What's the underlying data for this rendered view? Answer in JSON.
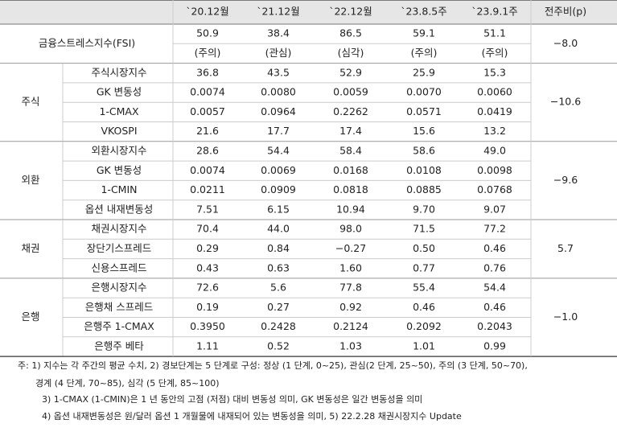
{
  "header": {
    "columns": [
      "`20.12월",
      "`21.12월",
      "`22.12월",
      "`23.8.5주",
      "`23.9.1주",
      "전주비(p)"
    ]
  },
  "negative_color": "#e0301e",
  "fsi": {
    "label": "금융스트레스지수(FSI)",
    "values": [
      "50.9",
      "38.4",
      "86.5",
      "59.1",
      "51.1"
    ],
    "levels": [
      "(주의)",
      "(관심)",
      "(심각)",
      "(주의)",
      "(주의)"
    ],
    "change": "−8.0"
  },
  "sections": [
    {
      "name": "주식",
      "change": "−10.6",
      "rows": [
        {
          "label": "주식시장지수",
          "values": [
            "36.8",
            "43.5",
            "52.9",
            "25.9",
            "15.3"
          ]
        },
        {
          "label": "GK 변동성",
          "values": [
            "0.0074",
            "0.0080",
            "0.0059",
            "0.0070",
            "0.0060"
          ]
        },
        {
          "label": "1-CMAX",
          "values": [
            "0.0057",
            "0.0964",
            "0.2262",
            "0.0571",
            "0.0419"
          ]
        },
        {
          "label": "VKOSPI",
          "values": [
            "21.6",
            "17.7",
            "17.4",
            "15.6",
            "13.2"
          ]
        }
      ]
    },
    {
      "name": "외환",
      "change": "−9.6",
      "rows": [
        {
          "label": "외환시장지수",
          "values": [
            "28.6",
            "54.4",
            "58.4",
            "58.6",
            "49.0"
          ]
        },
        {
          "label": "GK 변동성",
          "values": [
            "0.0074",
            "0.0069",
            "0.0168",
            "0.0108",
            "0.0098"
          ]
        },
        {
          "label": "1-CMIN",
          "values": [
            "0.0211",
            "0.0909",
            "0.0818",
            "0.0885",
            "0.0768"
          ]
        },
        {
          "label": "옵션 내재변동성",
          "values": [
            "7.51",
            "6.15",
            "10.94",
            "9.70",
            "9.07"
          ]
        }
      ]
    },
    {
      "name": "채권",
      "change": "5.7",
      "rows": [
        {
          "label": "채권시장지수",
          "values": [
            "70.4",
            "44.0",
            "98.0",
            "71.5",
            "77.2"
          ]
        },
        {
          "label": "장단기스프레드",
          "values": [
            "0.29",
            "0.84",
            "−0.27",
            "0.50",
            "0.46"
          ]
        },
        {
          "label": "신용스프레드",
          "values": [
            "0.43",
            "0.63",
            "1.60",
            "0.77",
            "0.76"
          ]
        }
      ]
    },
    {
      "name": "은행",
      "change": "−1.0",
      "rows": [
        {
          "label": "은행시장지수",
          "values": [
            "72.6",
            "5.6",
            "77.8",
            "55.4",
            "54.4"
          ]
        },
        {
          "label": "은행채 스프레드",
          "values": [
            "0.19",
            "0.27",
            "0.92",
            "0.46",
            "0.46"
          ]
        },
        {
          "label": "은행주 1-CMAX",
          "values": [
            "0.3950",
            "0.2428",
            "0.2124",
            "0.2092",
            "0.2043"
          ]
        },
        {
          "label": "은행주 베타",
          "values": [
            "1.11",
            "0.52",
            "1.03",
            "1.01",
            "0.99"
          ]
        }
      ]
    }
  ],
  "notes": [
    "주: 1) 지수는 각 주간의 평균 수치, 2) 경보단계는 5 단계로 구성: 정상 (1 단계, 0~25), 관심(2 단계, 25~50), 주의 (3 단계, 50~70),",
    "경계 (4 단계, 70~85), 심각 (5 단계, 85~100)",
    "3) 1-CMAX (1-CMIN)은 1 년 동안의 고점 (저점) 대비 변동성 의미, GK 변동성은 일간 변동성을 의미",
    "4) 옵션 내재변동성은 원/달러 옵션 1 개월물에 내재되어 있는 변동성을 의미, 5) 22.2.28 채권시장지수 Update"
  ]
}
